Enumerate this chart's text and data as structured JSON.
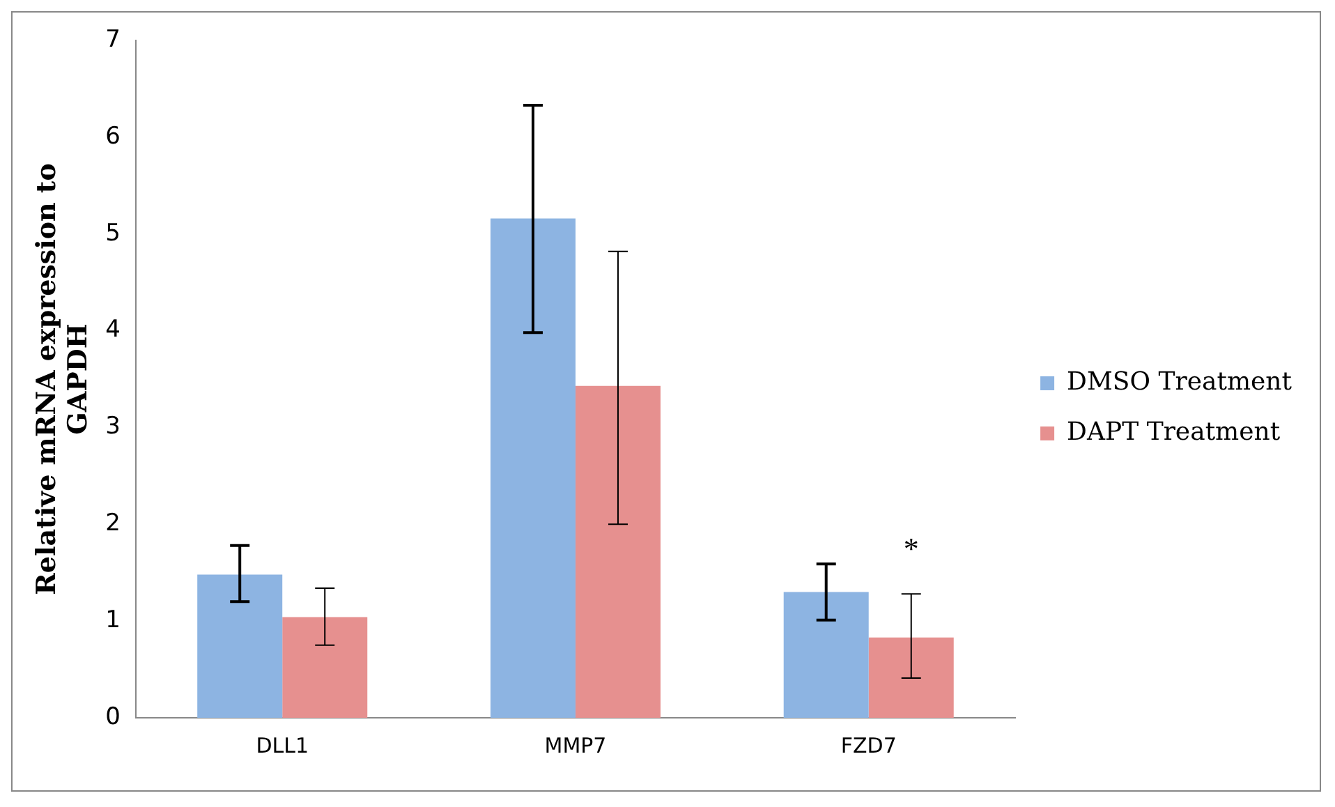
{
  "chart_data": {
    "type": "bar",
    "ylabel": "Relative mRNA expression to GAPDH",
    "categories": [
      "DLL1",
      "MMP7",
      "FZD7"
    ],
    "series": [
      {
        "name": "DMSO Treatment",
        "color": "#8db4e2",
        "values": [
          1.48,
          5.16,
          1.3
        ],
        "errors": [
          [
            1.2,
            1.78
          ],
          [
            3.98,
            6.33
          ],
          [
            1.01,
            1.59
          ]
        ]
      },
      {
        "name": "DAPT Treatment",
        "color": "#e6908f",
        "values": [
          1.04,
          3.43,
          0.83
        ],
        "errors": [
          [
            0.75,
            1.34
          ],
          [
            2.0,
            4.82
          ],
          [
            0.41,
            1.28
          ]
        ]
      }
    ],
    "ylim": [
      0,
      7
    ],
    "yticks": [
      0,
      1,
      2,
      3,
      4,
      5,
      6,
      7
    ],
    "grid": false,
    "legend": "right",
    "annotations": [
      "*"
    ]
  }
}
